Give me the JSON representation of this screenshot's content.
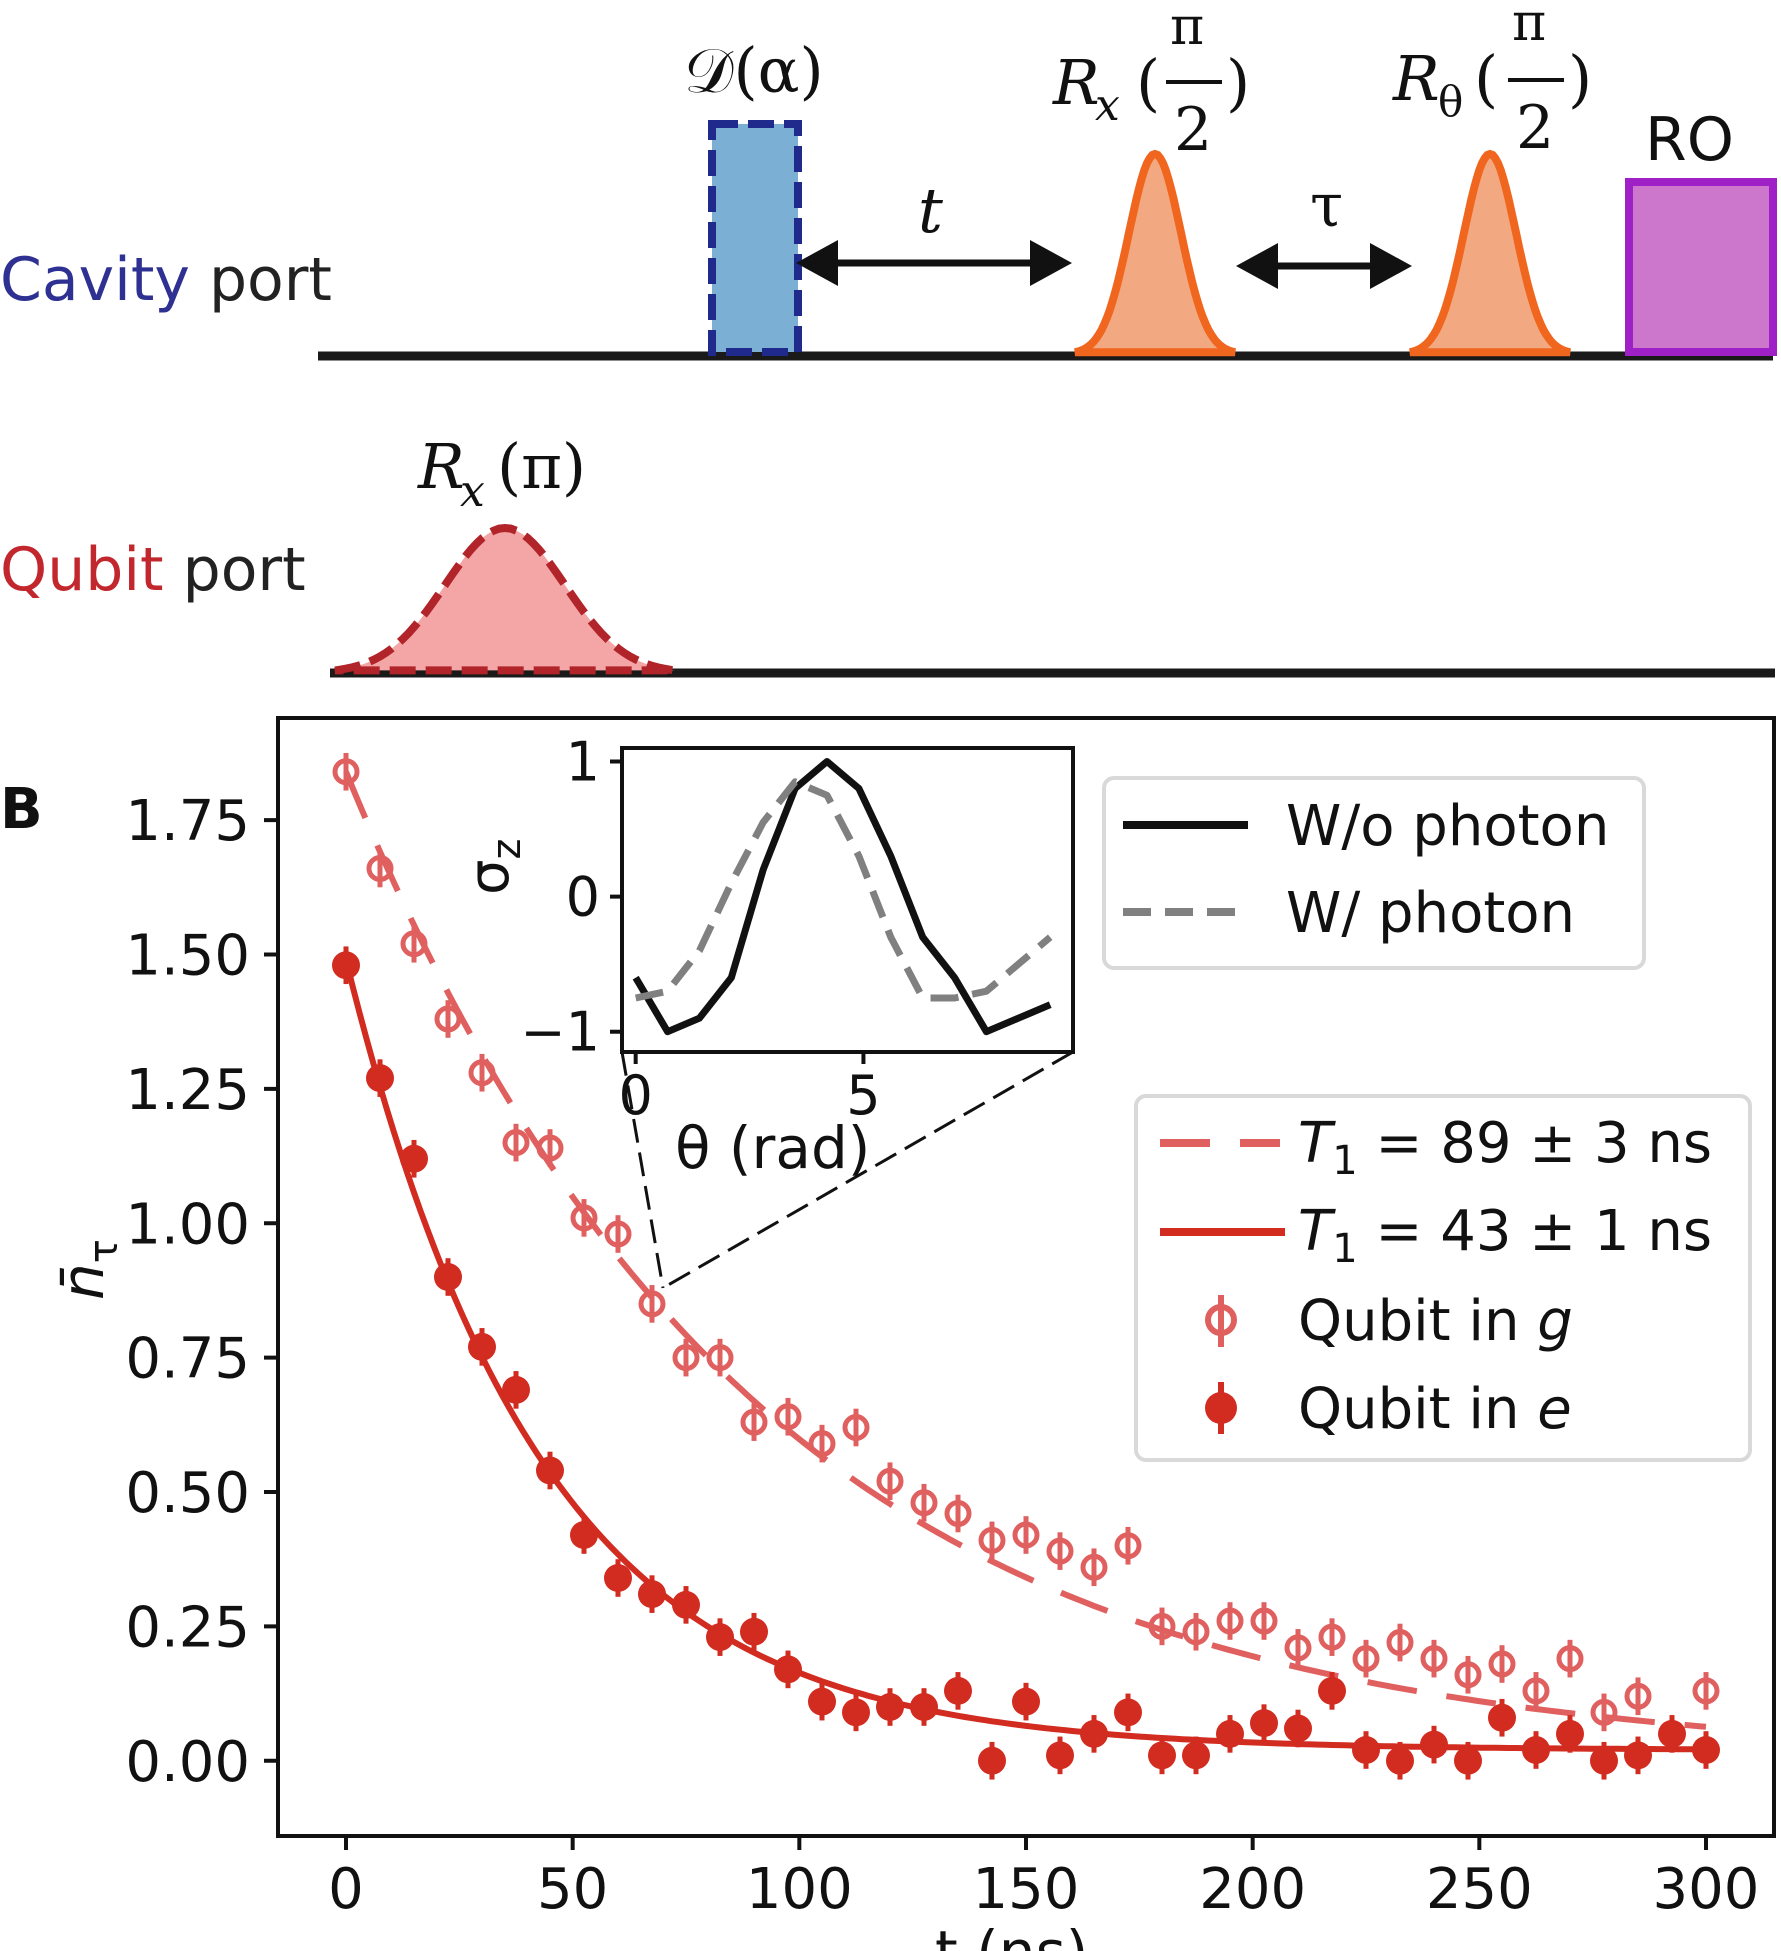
{
  "pulse_sequence": {
    "cavity_port": {
      "colored": "Cavity",
      "rest": " port",
      "color": "#2e3192"
    },
    "qubit_port": {
      "colored": "Qubit",
      "rest": " port",
      "color": "#c1272d"
    },
    "displacement": {
      "label": "𝒟(α)",
      "fill": "#7bafd4",
      "stroke": "#1f2a8c"
    },
    "delay_t": "t",
    "delay_tau": "τ",
    "pulse_rx_half": {
      "base": "R",
      "sub": "x",
      "num": "π",
      "den": "2"
    },
    "pulse_rtheta_half": {
      "base": "R",
      "sub": "θ",
      "num": "π",
      "den": "2"
    },
    "readout": {
      "label": "RO",
      "fill": "#cc77cc",
      "stroke": "#a020c8"
    },
    "qubit_pulse": {
      "label": "R",
      "sub": "x",
      "arg": "(π)"
    },
    "orange": "#f0661e",
    "orange_fill": "#f2a982",
    "qubit_fill": "#f4a6a6",
    "qubit_stroke": "#b0242a"
  },
  "panel_label": "B",
  "chart_data": [
    {
      "type": "scatter",
      "xlabel": "t (ns)",
      "ylabel": "n̄τ",
      "ylabel_base": "n̄",
      "ylabel_sub": "τ",
      "xlim": [
        -15,
        315
      ],
      "ylim": [
        -0.14,
        1.94
      ],
      "xticks": [
        0,
        50,
        100,
        150,
        200,
        250,
        300
      ],
      "xtick_labels": [
        "0",
        "50",
        "100",
        "150",
        "200",
        "250",
        "300"
      ],
      "yticks": [
        0,
        0.25,
        0.5,
        0.75,
        1.0,
        1.25,
        1.5,
        1.75
      ],
      "ytick_labels": [
        "0.00",
        "0.25",
        "0.50",
        "0.75",
        "1.00",
        "1.25",
        "1.50",
        "1.75"
      ],
      "fits": [
        {
          "name": "T₁ = 89 ± 3 ns",
          "T1_label": "T",
          "T1_sub": "1",
          "rest": " = 89 ± 3 ns",
          "amplitude": 1.84,
          "tau_ns": 89,
          "offset": 0.0,
          "style": "dashed",
          "color": "#e06060"
        },
        {
          "name": "T₁ = 43 ± 1 ns",
          "T1_label": "T",
          "T1_sub": "1",
          "rest": " = 43 ± 1 ns",
          "amplitude": 1.47,
          "tau_ns": 43,
          "offset": 0.02,
          "style": "solid",
          "color": "#d22b20"
        }
      ],
      "series": [
        {
          "name": "Qubit in g",
          "label_text": "Qubit in ",
          "label_italic": "g",
          "marker": "open-circle",
          "color": "#e06060",
          "x": [
            0,
            7.5,
            15,
            22.5,
            30,
            37.5,
            45,
            52.5,
            60,
            67.5,
            75,
            82.5,
            90,
            97.5,
            105,
            112.5,
            120,
            127.5,
            135,
            142.5,
            150,
            157.5,
            165,
            172.5,
            180,
            187.5,
            195,
            202.5,
            210,
            217.5,
            225,
            232.5,
            240,
            247.5,
            255,
            262.5,
            270,
            277.5,
            285,
            300
          ],
          "y": [
            1.84,
            1.66,
            1.52,
            1.38,
            1.28,
            1.15,
            1.14,
            1.01,
            0.98,
            0.85,
            0.75,
            0.75,
            0.63,
            0.64,
            0.59,
            0.62,
            0.52,
            0.48,
            0.46,
            0.41,
            0.42,
            0.39,
            0.36,
            0.4,
            0.25,
            0.24,
            0.26,
            0.26,
            0.21,
            0.23,
            0.19,
            0.22,
            0.19,
            0.16,
            0.18,
            0.13,
            0.19,
            0.09,
            0.12,
            0.13
          ],
          "yerr": 0.035
        },
        {
          "name": "Qubit in e",
          "label_text": "Qubit in ",
          "label_italic": "e",
          "marker": "filled-circle",
          "color": "#d22b20",
          "x": [
            0,
            7.5,
            15,
            22.5,
            30,
            37.5,
            45,
            52.5,
            60,
            67.5,
            75,
            82.5,
            90,
            97.5,
            105,
            112.5,
            120,
            127.5,
            135,
            142.5,
            150,
            157.5,
            165,
            172.5,
            180,
            187.5,
            195,
            202.5,
            210,
            217.5,
            225,
            232.5,
            240,
            247.5,
            255,
            262.5,
            270,
            277.5,
            285,
            292.5,
            300
          ],
          "y": [
            1.48,
            1.27,
            1.12,
            0.9,
            0.77,
            0.69,
            0.54,
            0.42,
            0.34,
            0.31,
            0.29,
            0.23,
            0.24,
            0.17,
            0.11,
            0.09,
            0.1,
            0.1,
            0.13,
            0.0,
            0.11,
            0.01,
            0.05,
            0.09,
            0.01,
            0.01,
            0.05,
            0.07,
            0.06,
            0.13,
            0.02,
            0.0,
            0.03,
            0.0,
            0.08,
            0.02,
            0.05,
            0.0,
            0.01,
            0.05,
            0.02
          ],
          "yerr": 0.035
        }
      ],
      "legend": "right"
    },
    {
      "type": "line",
      "inset": true,
      "xlabel": "θ (rad)",
      "ylabel": "σz",
      "ylabel_base": "σ",
      "ylabel_sub": "z",
      "xlim": [
        -0.3,
        9.6
      ],
      "ylim": [
        -1.15,
        1.1
      ],
      "xticks": [
        0,
        5
      ],
      "xtick_labels": [
        "0",
        "5"
      ],
      "yticks": [
        -1,
        0,
        1
      ],
      "ytick_labels": [
        "−1",
        "0",
        "1"
      ],
      "series": [
        {
          "name": "W/o photon",
          "style": "solid",
          "color": "#111111",
          "x": [
            0,
            0.7,
            1.4,
            2.1,
            2.8,
            3.5,
            4.2,
            4.9,
            5.6,
            6.3,
            7.0,
            7.7,
            8.4,
            9.1
          ],
          "y": [
            -0.6,
            -1.0,
            -0.9,
            -0.6,
            0.2,
            0.8,
            1.0,
            0.8,
            0.3,
            -0.3,
            -0.6,
            -1.0,
            -0.9,
            -0.8
          ]
        },
        {
          "name": "W/ photon",
          "style": "dashed",
          "color": "#808080",
          "x": [
            0,
            0.7,
            1.4,
            2.1,
            2.8,
            3.5,
            4.2,
            4.9,
            5.6,
            6.3,
            7.0,
            7.7,
            8.4,
            9.1
          ],
          "y": [
            -0.75,
            -0.7,
            -0.4,
            0.1,
            0.55,
            0.85,
            0.75,
            0.3,
            -0.3,
            -0.75,
            -0.75,
            -0.7,
            -0.5,
            -0.3
          ]
        }
      ],
      "legend": "top-right"
    }
  ]
}
